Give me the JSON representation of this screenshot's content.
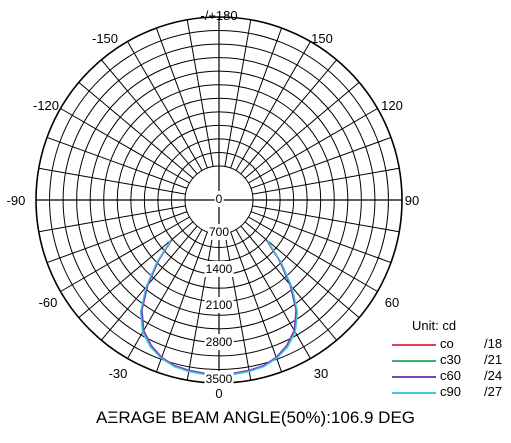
{
  "chart_data": {
    "type": "polar",
    "angle_labels": [
      "-/+180",
      "-150",
      "150",
      "-120",
      "120",
      "-90",
      "90",
      "-60",
      "60",
      "-30",
      "30",
      "0"
    ],
    "radial_labels": [
      "0",
      "700",
      "1400",
      "2100",
      "2800",
      "3500"
    ],
    "rmax": 3500,
    "unit_label": "Unit: cd",
    "caption": "AΞRAGE BEAM ANGLE(50%):106.9 DEG",
    "grid": true,
    "legend_position": "bottom-right",
    "series": [
      {
        "name": "co",
        "code": "/18",
        "color": "#e0405a",
        "points": [
          [
            -50,
            700
          ],
          [
            -45,
            1300
          ],
          [
            -40,
            1950
          ],
          [
            -35,
            2550
          ],
          [
            -30,
            2950
          ],
          [
            -25,
            3200
          ],
          [
            -20,
            3380
          ],
          [
            -15,
            3480
          ],
          [
            -10,
            3520
          ],
          [
            -5,
            3540
          ],
          [
            0,
            3550
          ],
          [
            5,
            3540
          ],
          [
            10,
            3520
          ],
          [
            15,
            3480
          ],
          [
            20,
            3380
          ],
          [
            25,
            3200
          ],
          [
            30,
            2950
          ],
          [
            35,
            2550
          ],
          [
            40,
            1950
          ],
          [
            45,
            1300
          ],
          [
            50,
            700
          ]
        ]
      },
      {
        "name": "c30",
        "code": "/21",
        "color": "#3cb06a",
        "points": [
          [
            -50,
            720
          ],
          [
            -45,
            1330
          ],
          [
            -40,
            1980
          ],
          [
            -35,
            2570
          ],
          [
            -30,
            2970
          ],
          [
            -25,
            3220
          ],
          [
            -20,
            3390
          ],
          [
            -15,
            3490
          ],
          [
            -10,
            3530
          ],
          [
            -5,
            3550
          ],
          [
            0,
            3550
          ],
          [
            5,
            3550
          ],
          [
            10,
            3530
          ],
          [
            15,
            3490
          ],
          [
            20,
            3390
          ],
          [
            25,
            3220
          ],
          [
            30,
            2970
          ],
          [
            35,
            2570
          ],
          [
            40,
            1980
          ],
          [
            45,
            1330
          ],
          [
            50,
            720
          ]
        ]
      },
      {
        "name": "c60",
        "code": "/24",
        "color": "#7a3fc0",
        "points": [
          [
            -50,
            690
          ],
          [
            -45,
            1290
          ],
          [
            -40,
            1930
          ],
          [
            -35,
            2530
          ],
          [
            -30,
            2940
          ],
          [
            -25,
            3190
          ],
          [
            -20,
            3370
          ],
          [
            -15,
            3470
          ],
          [
            -10,
            3510
          ],
          [
            -5,
            3530
          ],
          [
            0,
            3540
          ],
          [
            5,
            3530
          ],
          [
            10,
            3510
          ],
          [
            15,
            3470
          ],
          [
            20,
            3370
          ],
          [
            25,
            3190
          ],
          [
            30,
            2940
          ],
          [
            35,
            2530
          ],
          [
            40,
            1930
          ],
          [
            45,
            1290
          ],
          [
            50,
            690
          ]
        ]
      },
      {
        "name": "c90",
        "code": "/27",
        "color": "#3fc8e0",
        "points": [
          [
            -50,
            740
          ],
          [
            -45,
            1360
          ],
          [
            -40,
            2010
          ],
          [
            -35,
            2600
          ],
          [
            -30,
            3000
          ],
          [
            -25,
            3240
          ],
          [
            -20,
            3400
          ],
          [
            -15,
            3500
          ],
          [
            -10,
            3540
          ],
          [
            -5,
            3560
          ],
          [
            0,
            3560
          ],
          [
            5,
            3560
          ],
          [
            10,
            3540
          ],
          [
            15,
            3500
          ],
          [
            20,
            3400
          ],
          [
            25,
            3240
          ],
          [
            30,
            3000
          ],
          [
            35,
            2600
          ],
          [
            40,
            2010
          ],
          [
            45,
            1360
          ],
          [
            50,
            740
          ]
        ]
      }
    ]
  }
}
